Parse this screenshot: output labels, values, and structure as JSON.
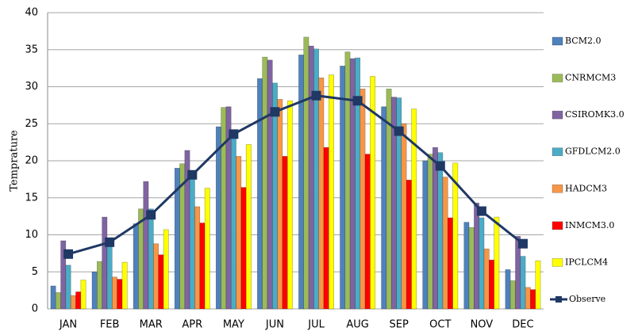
{
  "chart_data": {
    "type": "bar",
    "y_label": "Temprature",
    "categories": [
      "JAN",
      "FEB",
      "MAR",
      "APR",
      "MAY",
      "JUN",
      "JUL",
      "AUG",
      "SEP",
      "OCT",
      "NOV",
      "DEC"
    ],
    "ylim": [
      0,
      40
    ],
    "yticks": [
      0,
      5,
      10,
      15,
      20,
      25,
      30,
      35,
      40
    ],
    "grid": true,
    "legend": "right",
    "series": [
      {
        "name": "BCM2.0",
        "color": "#4f81bd",
        "values": [
          3.1,
          5.0,
          11.5,
          19.0,
          24.6,
          31.1,
          34.3,
          32.8,
          27.3,
          20.0,
          11.7,
          5.3
        ]
      },
      {
        "name": "CNRMCM3",
        "color": "#9bbb59",
        "values": [
          2.2,
          6.4,
          13.5,
          19.6,
          27.2,
          34.0,
          36.7,
          34.7,
          29.7,
          20.9,
          11.0,
          3.8
        ]
      },
      {
        "name": "CSIROMK3.0",
        "color": "#8064a2",
        "values": [
          9.2,
          12.4,
          17.2,
          21.4,
          27.3,
          33.6,
          35.5,
          33.8,
          28.6,
          21.8,
          14.3,
          9.8
        ]
      },
      {
        "name": "GFDLCM2.0",
        "color": "#4bacc6",
        "values": [
          5.9,
          9.0,
          13.5,
          18.3,
          23.5,
          30.5,
          35.1,
          33.9,
          28.5,
          21.1,
          12.3,
          7.1
        ]
      },
      {
        "name": "HADCM3",
        "color": "#f79646",
        "values": [
          1.8,
          4.3,
          8.8,
          13.8,
          20.6,
          28.3,
          31.2,
          29.7,
          25.0,
          17.8,
          8.1,
          2.9
        ]
      },
      {
        "name": "INMCM3.0",
        "color": "#ff0000",
        "values": [
          2.3,
          4.0,
          7.3,
          11.6,
          16.4,
          20.6,
          21.8,
          20.9,
          17.4,
          12.3,
          6.6,
          2.6
        ]
      },
      {
        "name": "IPCLCM4",
        "color": "#ffff00",
        "values": [
          3.9,
          6.3,
          10.7,
          16.3,
          22.2,
          28.1,
          31.6,
          31.4,
          27.0,
          19.7,
          12.4,
          6.5
        ]
      },
      {
        "name": "Observe",
        "color": "#1f3864",
        "type": "line",
        "values": [
          7.4,
          9.0,
          12.7,
          18.1,
          23.6,
          26.6,
          28.8,
          28.1,
          24.0,
          19.3,
          13.2,
          8.8
        ]
      }
    ]
  }
}
